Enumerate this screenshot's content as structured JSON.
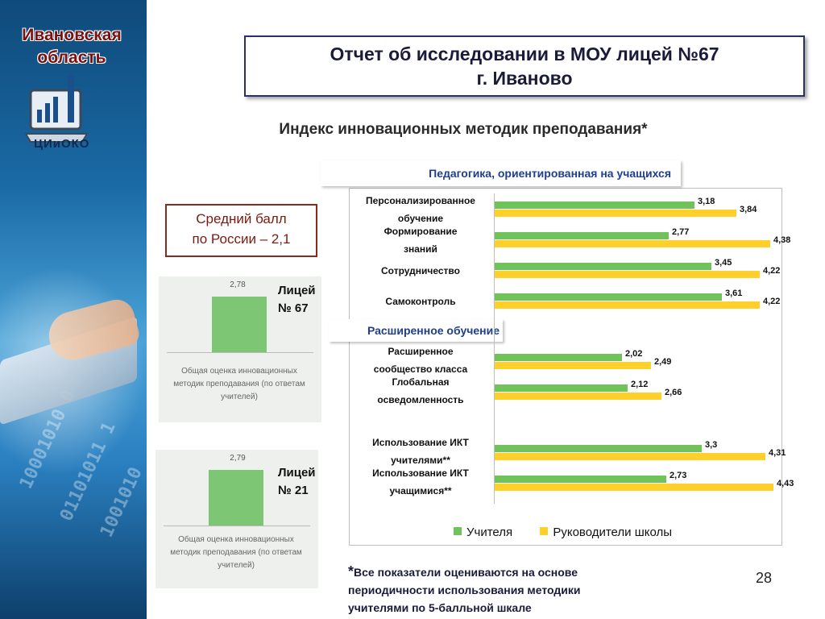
{
  "sidebar": {
    "region_line1": "Ивановская",
    "region_line2": "область",
    "logo_text": "ЦИиОКО"
  },
  "header": {
    "title_line1": "Отчет об исследовании в МОУ лицей №67",
    "title_line2": "г. Иваново"
  },
  "subtitle": "Индекс инновационных методик преподавания*",
  "russia_box": {
    "line1": "Средний балл",
    "line2": "по России – 2,1"
  },
  "mini_charts": [
    {
      "school_line1": "Лицей",
      "school_line2": "№ 67",
      "value": 2.78,
      "value_label": "2,78",
      "caption_line1": "Общая оценка инновационных",
      "caption_line2": "методик преподавания (по ответам",
      "caption_line3": "учителей)"
    },
    {
      "school_line1": "Лицей",
      "school_line2": "№ 21",
      "value": 2.79,
      "value_label": "2,79",
      "caption_line1": "Общая оценка инновационных",
      "caption_line2": "методик преподавания (по ответам",
      "caption_line3": "учителей)"
    }
  ],
  "chart_data": {
    "type": "bar",
    "orientation": "horizontal",
    "sections": [
      {
        "title": "Педагогика, ориентированная на учащихся"
      },
      {
        "title": "Расширенное обучение"
      }
    ],
    "categories": [
      {
        "line1": "Персонализированное",
        "line2": "обучение"
      },
      {
        "line1": "Формирование",
        "line2": "знаний"
      },
      {
        "line1": "Сотрудничество",
        "line2": ""
      },
      {
        "line1": "Самоконтроль",
        "line2": ""
      },
      {
        "line1": "Расширенное",
        "line2": "сообщество класса"
      },
      {
        "line1": "Глобальная",
        "line2": "осведомленность"
      },
      {
        "line1": "Использование ИКТ",
        "line2": "учителями**"
      },
      {
        "line1": "Использование ИКТ",
        "line2": "учащимися**"
      }
    ],
    "series": [
      {
        "name": "Учителя",
        "color": "#70c35b",
        "values": [
          3.18,
          2.77,
          3.45,
          3.61,
          2.02,
          2.12,
          3.3,
          2.73
        ],
        "labels": [
          "3,18",
          "2,77",
          "3,45",
          "3,61",
          "2,02",
          "2,12",
          "3,3",
          "2,73"
        ]
      },
      {
        "name": "Руководители школы",
        "color": "#ffd02a",
        "values": [
          3.84,
          4.38,
          4.22,
          4.22,
          2.49,
          2.66,
          4.31,
          4.43
        ],
        "labels": [
          "3,84",
          "4,38",
          "4,22",
          "4,22",
          "2,49",
          "2,66",
          "4,31",
          "4,43"
        ]
      }
    ],
    "xlim": [
      0,
      5
    ],
    "grid": false,
    "legend": "bottom"
  },
  "footnote": {
    "star": "*",
    "line1": "Все показатели оцениваются на основе",
    "line2": "периодичности использования методики",
    "line3": "учителями по 5-балльной шкале"
  },
  "page_number": "28"
}
